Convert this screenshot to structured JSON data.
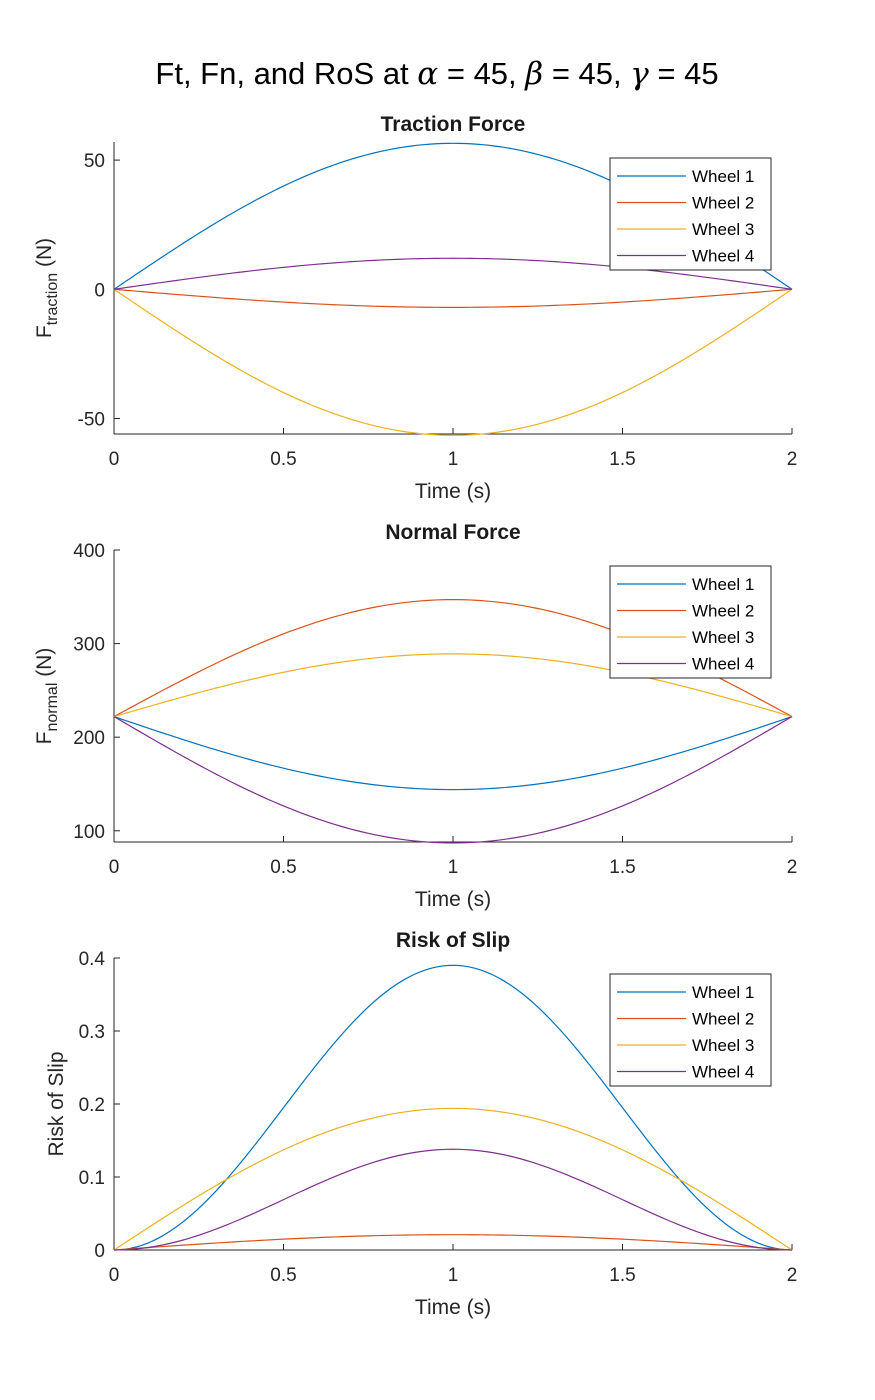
{
  "figure": {
    "title_prefix": "Ft, Fn, and RoS at ",
    "title_parts": [
      {
        "sym": "α",
        "text": " = 45, "
      },
      {
        "sym": "β",
        "text": " = 45, "
      },
      {
        "sym": "γ",
        "text": " = 45"
      }
    ]
  },
  "colors": {
    "wheel1": "#0072BD",
    "wheel2": "#D95319",
    "wheel3": "#EDB120",
    "wheel4": "#7E2F8E"
  },
  "chart_data": [
    {
      "type": "line",
      "title": "Traction Force",
      "xlabel": "Time (s)",
      "ylabel_main": "F",
      "ylabel_sub": "traction",
      "ylabel_tail": " (N)",
      "xlim": [
        0,
        2
      ],
      "ylim": [
        -56,
        57
      ],
      "xticks": [
        0,
        0.5,
        1,
        1.5,
        2
      ],
      "xtick_labels": [
        "0",
        "0.5",
        "1",
        "1.5",
        "2"
      ],
      "yticks": [
        -50,
        0,
        50
      ],
      "ytick_labels": [
        "-50",
        "0",
        "50"
      ],
      "legend_position": "top-right",
      "series": [
        {
          "name": "Wheel 1",
          "shape": "sine",
          "start": 0,
          "peak": 56.5
        },
        {
          "name": "Wheel 2",
          "shape": "sine",
          "start": 0,
          "peak": -7
        },
        {
          "name": "Wheel 3",
          "shape": "sine",
          "start": 0,
          "peak": -56.5
        },
        {
          "name": "Wheel 4",
          "shape": "sine",
          "start": 0,
          "peak": 12
        }
      ]
    },
    {
      "type": "line",
      "title": "Normal Force",
      "xlabel": "Time (s)",
      "ylabel_main": "F",
      "ylabel_sub": "normal",
      "ylabel_tail": " (N)",
      "xlim": [
        0,
        2
      ],
      "ylim": [
        88,
        400
      ],
      "xticks": [
        0,
        0.5,
        1,
        1.5,
        2
      ],
      "xtick_labels": [
        "0",
        "0.5",
        "1",
        "1.5",
        "2"
      ],
      "yticks": [
        100,
        200,
        300,
        400
      ],
      "ytick_labels": [
        "100",
        "200",
        "300",
        "400"
      ],
      "legend_position": "top-right",
      "series": [
        {
          "name": "Wheel 1",
          "shape": "sine",
          "start": 222,
          "peak": 144
        },
        {
          "name": "Wheel 2",
          "shape": "sine",
          "start": 222,
          "peak": 347
        },
        {
          "name": "Wheel 3",
          "shape": "sine",
          "start": 222,
          "peak": 289
        },
        {
          "name": "Wheel 4",
          "shape": "sine",
          "start": 222,
          "peak": 87
        }
      ]
    },
    {
      "type": "line",
      "title": "Risk of Slip",
      "xlabel": "Time (s)",
      "ylabel_main": "Risk of Slip",
      "ylabel_sub": "",
      "ylabel_tail": "",
      "xlim": [
        0,
        2
      ],
      "ylim": [
        0,
        0.4
      ],
      "xticks": [
        0,
        0.5,
        1,
        1.5,
        2
      ],
      "xtick_labels": [
        "0",
        "0.5",
        "1",
        "1.5",
        "2"
      ],
      "yticks": [
        0,
        0.1,
        0.2,
        0.3,
        0.4
      ],
      "ytick_labels": [
        "0",
        "0.1",
        "0.2",
        "0.3",
        "0.4"
      ],
      "legend_position": "top-right",
      "series": [
        {
          "name": "Wheel 1",
          "shape": "sine2",
          "start": 0,
          "peak": 0.39
        },
        {
          "name": "Wheel 2",
          "shape": "sine",
          "start": 0,
          "peak": 0.021
        },
        {
          "name": "Wheel 3",
          "shape": "sine",
          "start": 0,
          "peak": 0.194
        },
        {
          "name": "Wheel 4",
          "shape": "sine2",
          "start": 0,
          "peak": 0.138
        }
      ]
    }
  ]
}
